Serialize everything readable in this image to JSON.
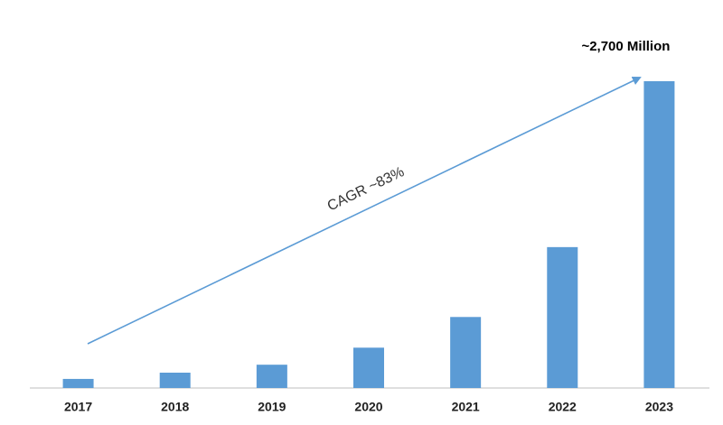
{
  "chart_data": {
    "type": "bar",
    "categories": [
      "2017",
      "2018",
      "2019",
      "2020",
      "2021",
      "2022",
      "2023"
    ],
    "values": [
      80,
      135,
      205,
      355,
      625,
      1240,
      2700
    ],
    "value_labels": [
      null,
      null,
      null,
      null,
      null,
      null,
      "~2,700 Million"
    ],
    "color": "#5b9bd5",
    "annotation": "CAGR ~83%"
  }
}
